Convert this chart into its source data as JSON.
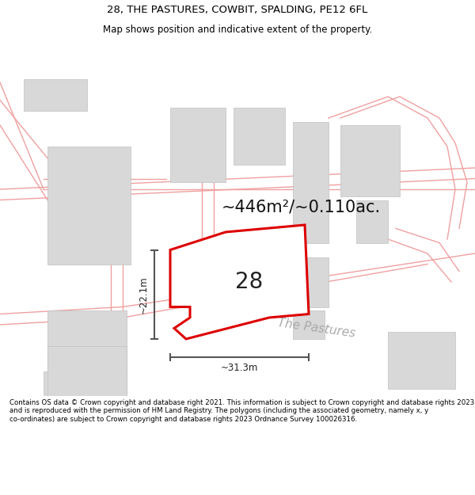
{
  "title": "28, THE PASTURES, COWBIT, SPALDING, PE12 6FL",
  "subtitle": "Map shows position and indicative extent of the property.",
  "area_text": "~446m²/~0.110ac.",
  "number_label": "28",
  "road_label": "The Pastures",
  "dim_h": "~22.1m",
  "dim_w": "~31.3m",
  "footer": "Contains OS data © Crown copyright and database right 2021. This information is subject to Crown copyright and database rights 2023 and is reproduced with the permission of HM Land Registry. The polygons (including the associated geometry, namely x, y co-ordinates) are subject to Crown copyright and database rights 2023 Ordnance Survey 100026316.",
  "bg_color": "#ffffff",
  "map_bg": "#ffffff",
  "plot_color": "#dd0000",
  "road_lines_color": "#f0a0a0",
  "building_color": "#d8d8d8",
  "building_edge": "#c0c0c0",
  "dim_line_color": "#555555",
  "road_text_color": "#aaaaaa",
  "title_color": "#000000",
  "footer_color": "#000000",
  "title_fontsize": 9.5,
  "subtitle_fontsize": 8.5,
  "area_fontsize": 15,
  "number_fontsize": 20,
  "road_fontsize": 11,
  "dim_fontsize": 8.5,
  "footer_fontsize": 6.2
}
